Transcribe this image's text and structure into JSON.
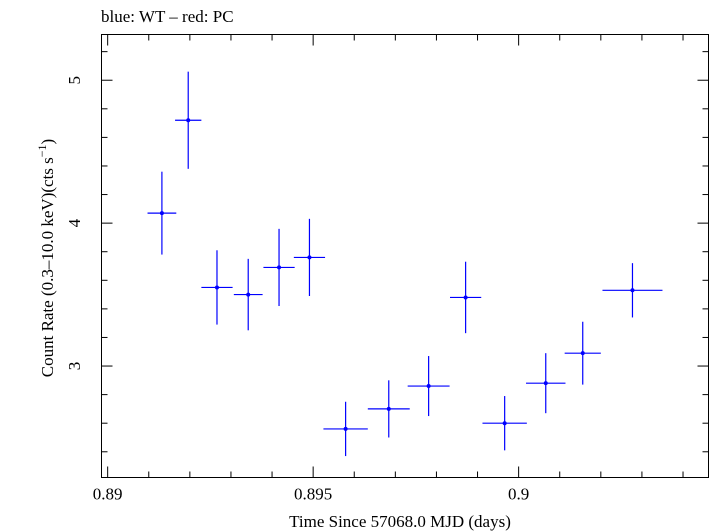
{
  "chart_data": {
    "type": "scatter",
    "title": "blue: WT – red: PC",
    "xlabel": "Time Since 57068.0 MJD (days)",
    "ylabel": "Count Rate (0.3–10.0 keV)(cts s",
    "ylabel_sup": "−1",
    "ylabel_close": ")",
    "xlim": [
      0.88985,
      0.90462
    ],
    "ylim": [
      2.22,
      5.32
    ],
    "x_ticks": [
      {
        "value": 0.89,
        "label": "0.89"
      },
      {
        "value": 0.895,
        "label": "0.895"
      },
      {
        "value": 0.9,
        "label": "0.9"
      }
    ],
    "y_ticks": [
      {
        "value": 3,
        "label": "3"
      },
      {
        "value": 4,
        "label": "4"
      },
      {
        "value": 5,
        "label": "5"
      }
    ],
    "grid": false,
    "series": [
      {
        "color": "#0000ff",
        "points": [
          {
            "x": 0.89132,
            "xerr": 0.00035,
            "y": 4.07,
            "yerr": 0.29
          },
          {
            "x": 0.89196,
            "xerr": 0.00032,
            "y": 4.72,
            "yerr": 0.34
          },
          {
            "x": 0.89266,
            "xerr": 0.00038,
            "y": 3.55,
            "yerr": 0.26
          },
          {
            "x": 0.89342,
            "xerr": 0.00035,
            "y": 3.5,
            "yerr": 0.25
          },
          {
            "x": 0.89417,
            "xerr": 0.00038,
            "y": 3.69,
            "yerr": 0.27
          },
          {
            "x": 0.89491,
            "xerr": 0.00038,
            "y": 3.76,
            "yerr": 0.27
          },
          {
            "x": 0.89579,
            "xerr": 0.00054,
            "y": 2.56,
            "yerr": 0.19
          },
          {
            "x": 0.89684,
            "xerr": 0.00051,
            "y": 2.7,
            "yerr": 0.2
          },
          {
            "x": 0.89781,
            "xerr": 0.00051,
            "y": 2.86,
            "yerr": 0.21
          },
          {
            "x": 0.89871,
            "xerr": 0.00038,
            "y": 3.48,
            "yerr": 0.25
          },
          {
            "x": 0.89966,
            "xerr": 0.00054,
            "y": 2.6,
            "yerr": 0.19
          },
          {
            "x": 0.90066,
            "xerr": 0.00048,
            "y": 2.88,
            "yerr": 0.21
          },
          {
            "x": 0.90156,
            "xerr": 0.00044,
            "y": 3.09,
            "yerr": 0.22
          },
          {
            "x": 0.90277,
            "xerr": 0.00073,
            "y": 3.53,
            "yerr": 0.19
          }
        ]
      }
    ]
  }
}
